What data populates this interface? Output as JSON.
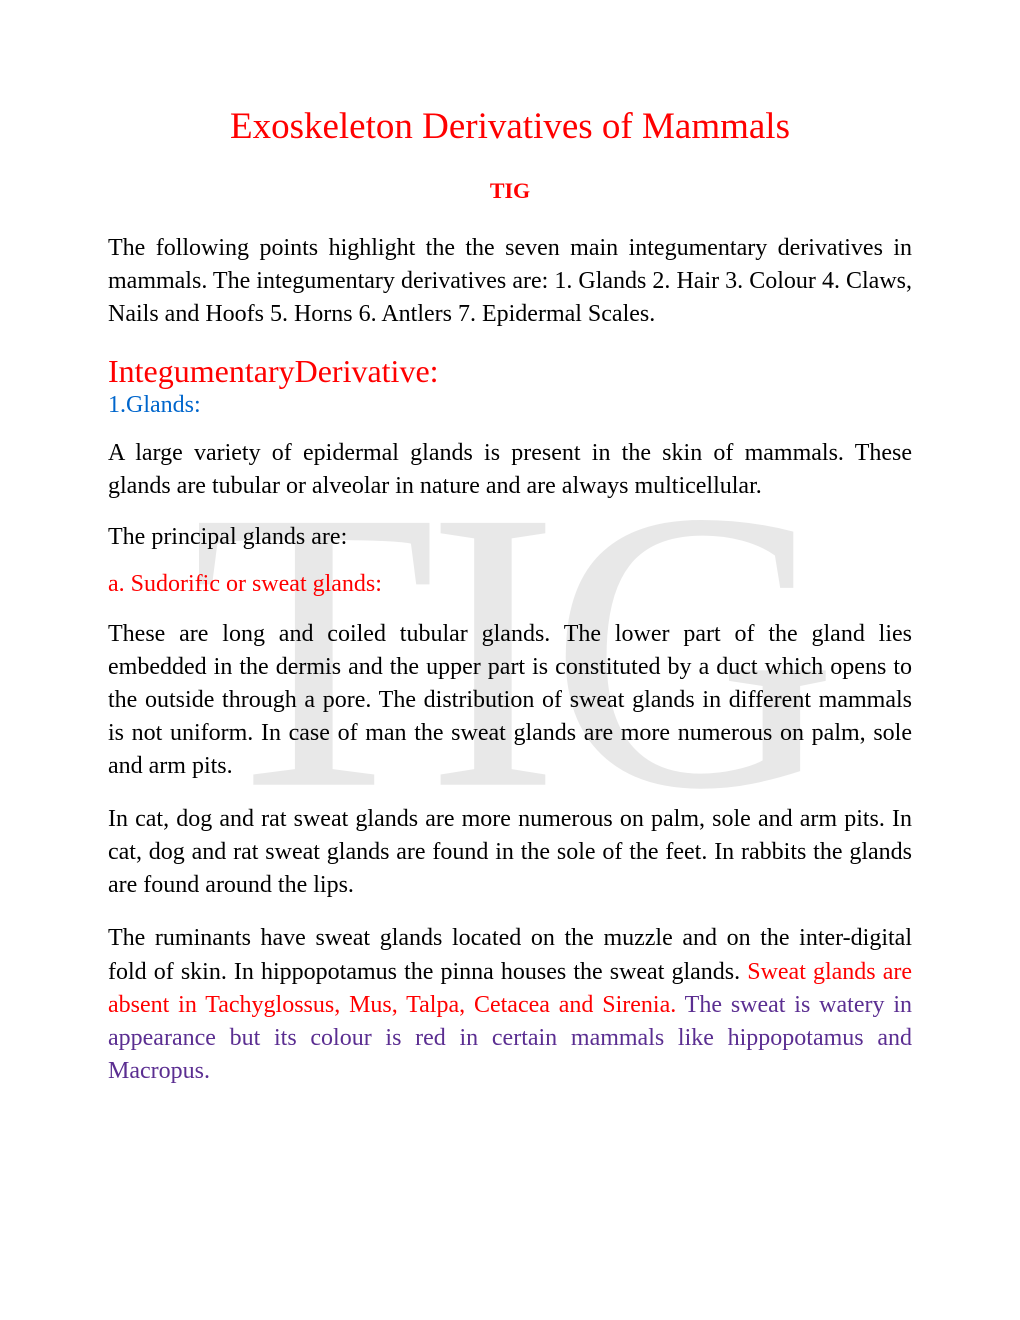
{
  "watermark": {
    "text": "TIG",
    "color": "rgba(128, 128, 128, 0.18)",
    "fontsize": 400
  },
  "document": {
    "title": "Exoskeleton Derivatives of Mammals",
    "label": "TIG",
    "intro": "The following points highlight the the seven main integumentary derivatives in mammals. The integumentary derivatives are: 1. Glands 2. Hair 3. Colour 4. Claws, Nails and Hoofs 5. Horns 6. Antlers 7. Epidermal Scales.",
    "section_heading": "IntegumentaryDerivative:",
    "sub_heading": "1.Glands:",
    "para1": "A large variety of epidermal glands is present in the skin of mammals. These glands are tubular or alveolar in nature and are always multicellular.",
    "principal_line": "The principal glands are:",
    "sub_sub_heading": "a. Sudorific or sweat glands:",
    "para2": "These are long and coiled tubular glands. The lower part of the gland lies embedded in the dermis and the upper part is constituted by a duct which opens to the outside through a pore. The distribution of sweat glands in different mammals is not uniform. In case of man the sweat glands are more numerous on palm, sole and arm pits.",
    "para3": "In cat, dog and rat sweat glands are more numerous on palm, sole and arm pits. In cat, dog and rat sweat glands are found in the sole of the feet. In rabbits the glands are found around the lips.",
    "para4_black": "The ruminants have sweat glands located on the muzzle and on the inter-digital fold of skin. In hippopotamus the pinna houses the sweat glands.",
    "para4_red": "Sweat glands are absent in Tachyglossus, Mus, Talpa, Cetacea and Sirenia.",
    "para4_purple": "The sweat is watery in appearance but its colour is red in certain mammals like hippopotamus and Macropus."
  },
  "colors": {
    "title_red": "#ff0000",
    "link_blue": "#0066cc",
    "body_black": "#000000",
    "purple": "#5b2e91",
    "background": "#ffffff"
  },
  "typography": {
    "title_fontsize": 37,
    "section_fontsize": 32,
    "body_fontsize": 24,
    "label_fontsize": 22,
    "font_family": "Times New Roman"
  }
}
